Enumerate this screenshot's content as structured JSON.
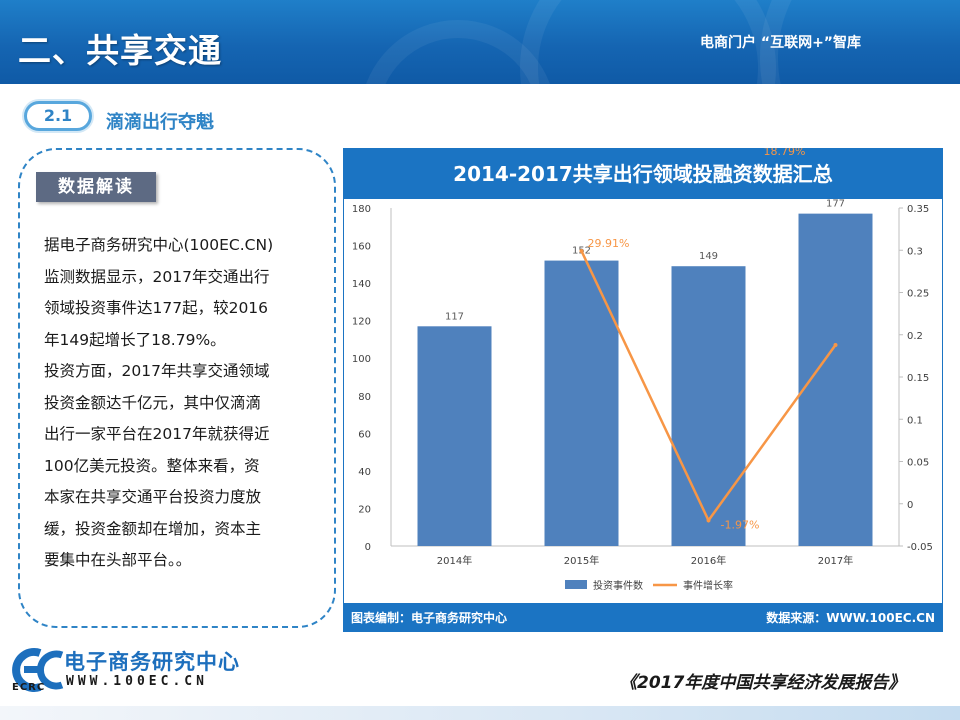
{
  "header": {
    "title": "二、共享交通",
    "brand": "电商门户 “互联网+”智库"
  },
  "section": {
    "number": "2.1",
    "title": "滴滴出行夺魁"
  },
  "sidebar": {
    "tab": "数据解读",
    "lines": [
      "据电子商务研究中心(100EC.CN)",
      "监测数据显示，2017年交通出行",
      "领域投资事件达177起，较2016",
      "年149起增长了18.79%。",
      "投资方面，2017年共享交通领域",
      "投资金额达千亿元，其中仅滴滴",
      "出行一家平台在2017年就获得近",
      "100亿美元投资。整体来看，资",
      "本家在共享交通平台投资力度放",
      "缓，投资金额却在增加，资本主",
      "要集中在头部平台。。"
    ]
  },
  "chart_data": {
    "type": "bar",
    "title": "2014-2017共享出行领域投融资数据汇总",
    "categories": [
      "2014年",
      "2015年",
      "2016年",
      "2017年"
    ],
    "series": [
      {
        "name": "投资事件数",
        "type": "bar",
        "axis": "left",
        "values": [
          117,
          152,
          149,
          177
        ],
        "labels": [
          "117",
          "152",
          "149",
          "177"
        ]
      },
      {
        "name": "事件增长率",
        "type": "line",
        "axis": "right",
        "values": [
          null,
          0.2991,
          -0.0197,
          0.1879
        ],
        "labels": [
          "",
          "29.91%",
          "-1.97%",
          "18.79%"
        ]
      }
    ],
    "ylim_left": [
      0,
      180
    ],
    "yticks_left": [
      "0",
      "20",
      "40",
      "60",
      "80",
      "100",
      "120",
      "140",
      "160",
      "180"
    ],
    "ylim_right": [
      -0.05,
      0.35
    ],
    "yticks_right": [
      "-0.05",
      "0",
      "0.05",
      "0.1",
      "0.15",
      "0.2",
      "0.25",
      "0.3",
      "0.35"
    ],
    "legend_position": "bottom",
    "grid": false,
    "colors": {
      "bar": "#4f81bd",
      "line": "#f79646",
      "title_band": "#1b74c3",
      "footer_band": "#1b74c3"
    },
    "footer_left": "图表编制：电子商务研究中心",
    "footer_right": "数据来源：WWW.100EC.CN"
  },
  "logo": {
    "cn": "电子商务研究中心",
    "en": "WWW.100EC.CN",
    "abbr": "ECRC"
  },
  "report_name": "《2017年度中国共享经济发展报告》"
}
